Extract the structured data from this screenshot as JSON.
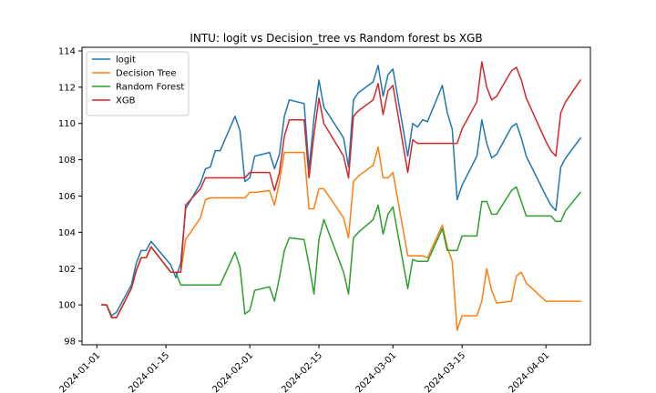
{
  "chart_data": {
    "type": "line",
    "title": "INTU: logit vs Decision_tree vs Random forest bs XGB",
    "xlabel": "",
    "ylabel": "",
    "x_type": "date",
    "xlim": [
      "2023-12-29",
      "2024-04-10"
    ],
    "ylim": [
      97.8,
      114.2
    ],
    "x_ticks": [
      "2024-01-01",
      "2024-01-15",
      "2024-02-01",
      "2024-02-15",
      "2024-03-01",
      "2024-03-15",
      "2024-04-01"
    ],
    "y_ticks": [
      98,
      100,
      102,
      104,
      106,
      108,
      110,
      112,
      114
    ],
    "legend_position": "top-left",
    "grid": false,
    "x": [
      "2024-01-02",
      "2024-01-03",
      "2024-01-04",
      "2024-01-05",
      "2024-01-08",
      "2024-01-09",
      "2024-01-10",
      "2024-01-11",
      "2024-01-12",
      "2024-01-16",
      "2024-01-17",
      "2024-01-18",
      "2024-01-19",
      "2024-01-22",
      "2024-01-23",
      "2024-01-24",
      "2024-01-25",
      "2024-01-26",
      "2024-01-29",
      "2024-01-30",
      "2024-01-31",
      "2024-02-01",
      "2024-02-02",
      "2024-02-05",
      "2024-02-06",
      "2024-02-07",
      "2024-02-08",
      "2024-02-09",
      "2024-02-12",
      "2024-02-13",
      "2024-02-14",
      "2024-02-15",
      "2024-02-16",
      "2024-02-20",
      "2024-02-21",
      "2024-02-22",
      "2024-02-23",
      "2024-02-26",
      "2024-02-27",
      "2024-02-28",
      "2024-02-29",
      "2024-03-01",
      "2024-03-04",
      "2024-03-05",
      "2024-03-06",
      "2024-03-07",
      "2024-03-08",
      "2024-03-11",
      "2024-03-12",
      "2024-03-13",
      "2024-03-14",
      "2024-03-15",
      "2024-03-18",
      "2024-03-19",
      "2024-03-20",
      "2024-03-21",
      "2024-03-22",
      "2024-03-25",
      "2024-03-26",
      "2024-03-27",
      "2024-03-28",
      "2024-04-01",
      "2024-04-02",
      "2024-04-03",
      "2024-04-04",
      "2024-04-05",
      "2024-04-08"
    ],
    "series": [
      {
        "name": "logit",
        "color": "#1f77b4",
        "values": [
          100.0,
          100.0,
          99.4,
          99.6,
          101.1,
          102.3,
          103.0,
          103.0,
          103.5,
          102.2,
          101.5,
          102.3,
          105.3,
          106.7,
          107.5,
          107.6,
          108.5,
          108.5,
          110.4,
          109.6,
          106.8,
          107.0,
          108.2,
          108.4,
          107.5,
          108.3,
          110.4,
          111.3,
          111.1,
          107.5,
          110.3,
          112.4,
          110.9,
          109.2,
          107.6,
          111.3,
          111.7,
          112.3,
          113.2,
          111.5,
          112.7,
          113.0,
          108.2,
          110.0,
          109.8,
          110.2,
          110.1,
          112.1,
          110.6,
          109.7,
          105.8,
          106.6,
          108.2,
          110.2,
          108.9,
          108.1,
          108.3,
          109.8,
          110.0,
          109.2,
          108.2,
          106.0,
          105.5,
          105.2,
          107.6,
          108.1,
          109.2
        ]
      },
      {
        "name": "Decision Tree",
        "color": "#ff7f0e",
        "values": [
          100.0,
          100.0,
          99.3,
          99.3,
          100.9,
          101.9,
          102.6,
          102.6,
          103.2,
          101.8,
          101.8,
          101.8,
          103.6,
          104.8,
          105.8,
          105.9,
          105.9,
          105.9,
          105.9,
          105.9,
          105.9,
          106.2,
          106.2,
          106.3,
          105.5,
          106.8,
          108.4,
          108.4,
          108.4,
          105.3,
          105.3,
          106.4,
          106.4,
          104.8,
          103.7,
          106.8,
          107.1,
          107.7,
          108.7,
          107.0,
          107.0,
          107.3,
          102.7,
          102.7,
          102.7,
          102.7,
          102.6,
          104.4,
          103.2,
          102.4,
          98.6,
          99.4,
          99.4,
          100.2,
          102.0,
          100.8,
          100.1,
          100.2,
          101.6,
          101.8,
          101.2,
          100.2,
          100.2,
          100.2,
          100.2,
          100.2,
          100.2
        ]
      },
      {
        "name": "Random Forest",
        "color": "#2ca02c",
        "values": [
          100.0,
          100.0,
          99.3,
          99.3,
          100.9,
          101.9,
          102.6,
          102.6,
          103.2,
          101.8,
          101.8,
          101.1,
          101.1,
          101.1,
          101.1,
          101.1,
          101.1,
          101.1,
          102.9,
          102.1,
          99.5,
          99.7,
          100.8,
          101.0,
          100.2,
          101.5,
          103.0,
          103.7,
          103.6,
          102.2,
          100.6,
          103.6,
          104.7,
          101.8,
          100.6,
          103.7,
          104.0,
          104.7,
          105.5,
          103.9,
          105.0,
          105.4,
          100.9,
          102.5,
          102.4,
          102.4,
          102.4,
          104.2,
          103.0,
          103.0,
          103.0,
          103.8,
          103.8,
          105.7,
          105.7,
          105.0,
          105.0,
          106.3,
          106.5,
          105.7,
          104.9,
          104.9,
          104.9,
          104.6,
          104.6,
          105.2,
          106.2
        ]
      },
      {
        "name": "XGB",
        "color": "#d62728",
        "values": [
          100.0,
          100.0,
          99.3,
          99.3,
          100.9,
          101.9,
          102.6,
          102.6,
          103.2,
          101.8,
          101.8,
          101.8,
          105.5,
          106.4,
          107.0,
          107.0,
          107.0,
          107.0,
          107.0,
          107.0,
          107.0,
          107.3,
          107.3,
          107.3,
          106.3,
          107.3,
          109.3,
          110.2,
          110.2,
          107.0,
          109.4,
          111.4,
          110.0,
          108.2,
          107.0,
          110.4,
          110.7,
          111.3,
          112.2,
          110.5,
          111.8,
          112.1,
          107.3,
          109.1,
          108.9,
          108.9,
          108.9,
          108.9,
          108.9,
          108.9,
          108.9,
          109.7,
          111.2,
          113.4,
          112.0,
          111.3,
          111.5,
          112.9,
          113.1,
          112.4,
          111.4,
          109.0,
          108.5,
          108.2,
          110.6,
          111.2,
          112.4
        ]
      }
    ]
  }
}
